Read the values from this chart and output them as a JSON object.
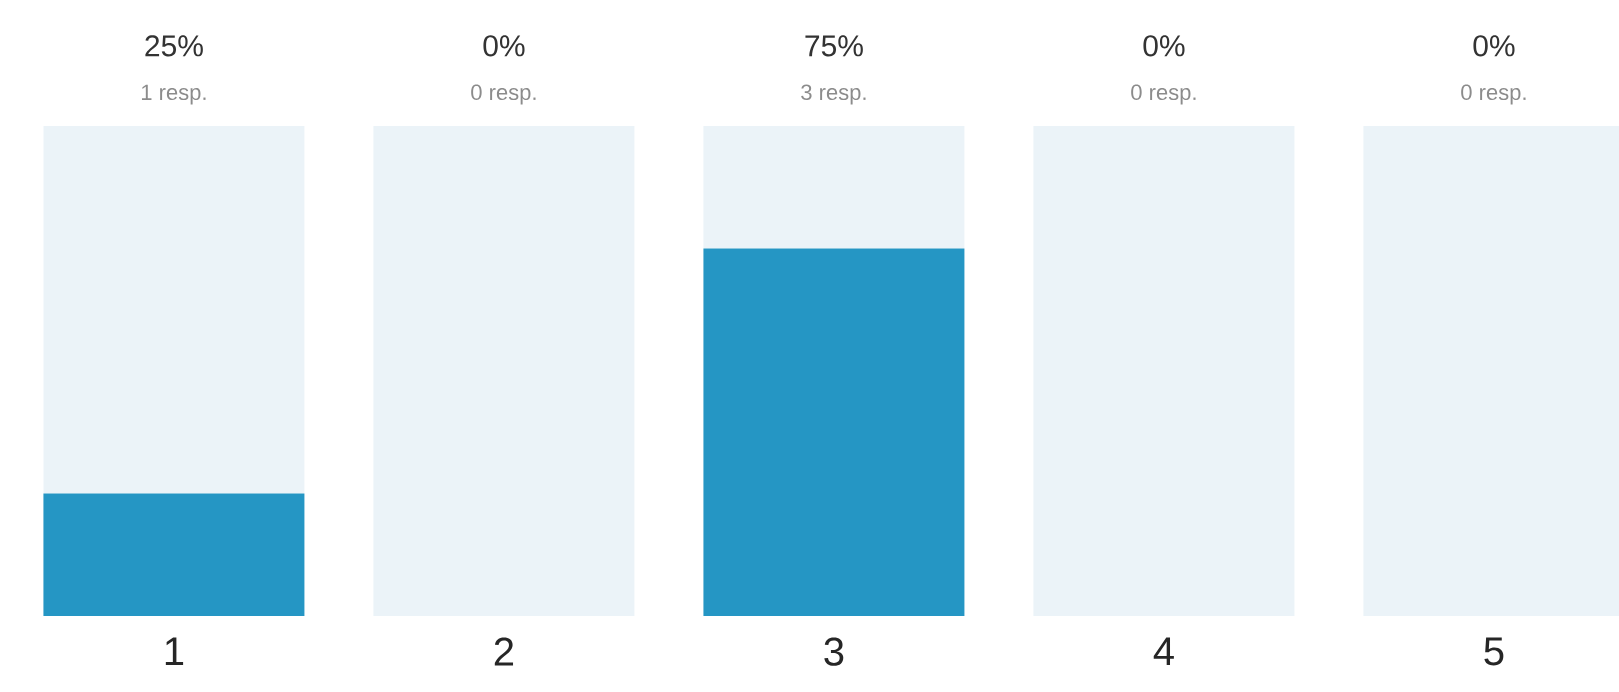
{
  "chart_data": {
    "type": "bar",
    "stacked": true,
    "categories": [
      "1",
      "2",
      "3",
      "4",
      "5"
    ],
    "ylim": [
      0,
      100
    ],
    "tick_labels": "x",
    "series": [
      {
        "color": "#2596c4",
        "values": [
          25,
          0,
          75,
          0,
          0
        ],
        "value_labels": [
          "25%",
          "0%",
          "75%",
          "0%",
          "0%"
        ]
      },
      {
        "color": "#ebf3f8",
        "values": [
          75,
          100,
          25,
          100,
          100
        ]
      }
    ],
    "annotations": [
      {
        "text": "1 resp.",
        "x": "1",
        "y": 100
      },
      {
        "text": "0 resp.",
        "x": "2",
        "y": 100
      },
      {
        "text": "3 resp.",
        "x": "3",
        "y": 100
      },
      {
        "text": "0 resp.",
        "x": "4",
        "y": 100
      },
      {
        "text": "0 resp.",
        "x": "5",
        "y": 100
      }
    ]
  }
}
